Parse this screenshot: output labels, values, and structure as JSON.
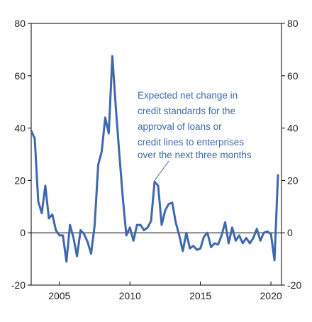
{
  "chart_data": {
    "type": "line",
    "title": "",
    "xlabel": "",
    "ylabel": "",
    "xlim": [
      2003.0,
      2020.75
    ],
    "ylim": [
      -20,
      80
    ],
    "yticks": [
      -20,
      0,
      20,
      40,
      60,
      80
    ],
    "y_tick_labels": [
      "-20",
      "0",
      "20",
      "40",
      "60",
      "80"
    ],
    "xticks": [
      2005,
      2010,
      2015,
      2020
    ],
    "x_tick_labels": [
      "2005",
      "2010",
      "2015",
      "2020"
    ],
    "grid": false,
    "legend": "none",
    "colors": {
      "series": "#3f67ae",
      "axis": "#000000",
      "annotation": "#3f67ae"
    },
    "series": [
      {
        "x": [
          2003.0,
          2003.25,
          2003.5,
          2003.75,
          2004.0,
          2004.25,
          2004.5,
          2004.75,
          2005.0,
          2005.25,
          2005.5,
          2005.75,
          2006.0,
          2006.25,
          2006.5,
          2006.75,
          2007.0,
          2007.25,
          2007.5,
          2007.75,
          2008.0,
          2008.25,
          2008.5,
          2008.75,
          2009.0,
          2009.25,
          2009.5,
          2009.75,
          2010.0,
          2010.25,
          2010.5,
          2010.75,
          2011.0,
          2011.25,
          2011.5,
          2011.75,
          2012.0,
          2012.25,
          2012.5,
          2012.75,
          2013.0,
          2013.25,
          2013.5,
          2013.75,
          2014.0,
          2014.25,
          2014.5,
          2014.75,
          2015.0,
          2015.25,
          2015.5,
          2015.75,
          2016.0,
          2016.25,
          2016.5,
          2016.75,
          2017.0,
          2017.25,
          2017.5,
          2017.75,
          2018.0,
          2018.25,
          2018.5,
          2018.75,
          2019.0,
          2019.25,
          2019.5,
          2019.75,
          2020.0,
          2020.25,
          2020.5
        ],
        "y": [
          39,
          36,
          12,
          7.5,
          18,
          5.5,
          7,
          1,
          -1,
          -1,
          -11,
          3,
          -2,
          -9,
          1,
          -0.5,
          -3.5,
          -8,
          3,
          26,
          31,
          44,
          38,
          67.5,
          48,
          30,
          13,
          -1,
          2,
          -3,
          3,
          3,
          1,
          2,
          4.5,
          19.5,
          18,
          3,
          8.5,
          11,
          11.5,
          4,
          -1,
          -7,
          0,
          -6,
          -5,
          -6.5,
          -6,
          -1.5,
          0,
          -5.5,
          -4,
          -4.5,
          -1,
          4,
          -4,
          2,
          -3,
          -1,
          -4,
          -2,
          -4,
          -2,
          1.5,
          -3,
          0,
          0.5,
          -0.5,
          -10.5,
          22
        ]
      }
    ],
    "annotation": "Expected net change in credit standards for the approval of loans or credit lines to enterprises over the next three months"
  }
}
